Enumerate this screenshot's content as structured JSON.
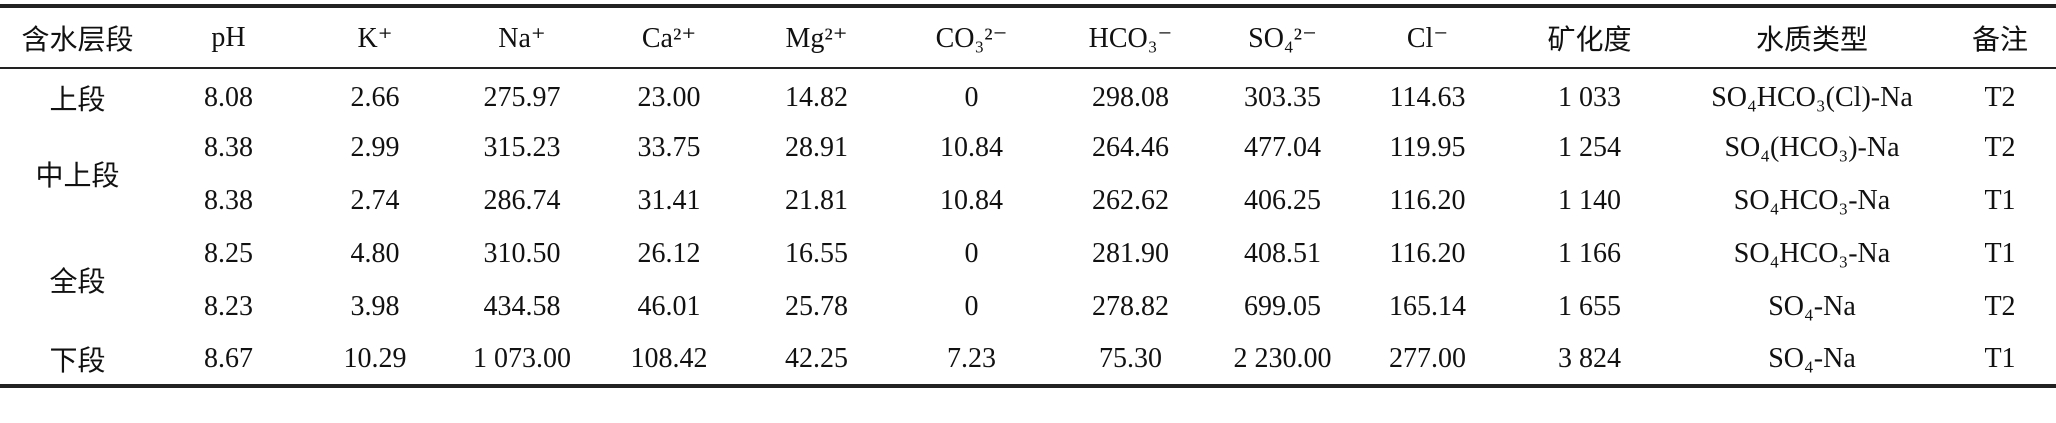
{
  "table": {
    "header": [
      "含水层段",
      "pH",
      "K⁺",
      "Na⁺",
      "Ca²⁺",
      "Mg²⁺",
      "CO₃²⁻",
      "HCO₃⁻",
      "SO₄²⁻",
      "Cl⁻",
      "矿化度",
      "水质类型",
      "备注"
    ],
    "groups": [
      {
        "segment": "上段",
        "rows": [
          [
            "8.08",
            "2.66",
            "275.97",
            "23.00",
            "14.82",
            "0",
            "298.08",
            "303.35",
            "114.63",
            "1 033",
            "SO₄HCO₃(Cl)-Na",
            "T2"
          ]
        ]
      },
      {
        "segment": "中上段",
        "rows": [
          [
            "8.38",
            "2.99",
            "315.23",
            "33.75",
            "28.91",
            "10.84",
            "264.46",
            "477.04",
            "119.95",
            "1 254",
            "SO₄(HCO₃)-Na",
            "T2"
          ],
          [
            "8.38",
            "2.74",
            "286.74",
            "31.41",
            "21.81",
            "10.84",
            "262.62",
            "406.25",
            "116.20",
            "1 140",
            "SO₄HCO₃-Na",
            "T1"
          ]
        ]
      },
      {
        "segment": "全段",
        "rows": [
          [
            "8.25",
            "4.80",
            "310.50",
            "26.12",
            "16.55",
            "0",
            "281.90",
            "408.51",
            "116.20",
            "1 166",
            "SO₄HCO₃-Na",
            "T1"
          ],
          [
            "8.23",
            "3.98",
            "434.58",
            "46.01",
            "25.78",
            "0",
            "278.82",
            "699.05",
            "165.14",
            "1 655",
            "SO₄-Na",
            "T2"
          ]
        ]
      },
      {
        "segment": "下段",
        "rows": [
          [
            "8.67",
            "10.29",
            "1 073.00",
            "108.42",
            "42.25",
            "7.23",
            "75.30",
            "2 230.00",
            "277.00",
            "3 824",
            "SO₄-Na",
            "T1"
          ]
        ]
      }
    ]
  }
}
